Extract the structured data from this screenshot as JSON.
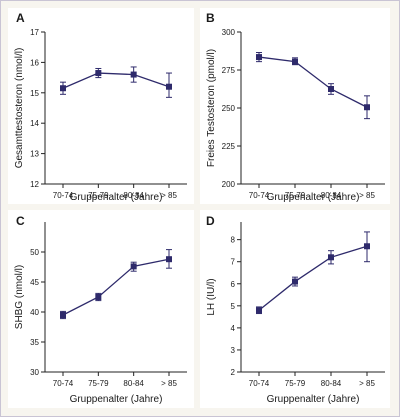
{
  "colors": {
    "series": "#2e2a6b",
    "axis": "#222222",
    "panel_bg": "#ffffff",
    "figure_bg": "#f7f5ef"
  },
  "chart_data": [
    {
      "type": "line",
      "panel": "A",
      "categories": [
        "70-74",
        "75-79",
        "80-84",
        "> 85"
      ],
      "values": [
        15.15,
        15.65,
        15.6,
        15.2
      ],
      "error_low": [
        14.95,
        15.5,
        15.35,
        14.85
      ],
      "error_high": [
        15.35,
        15.8,
        15.85,
        15.65
      ],
      "xlabel": "Gruppenalter (Jahre)",
      "ylabel": "Gesamttestosteron (nmol/l)",
      "ylim": [
        12,
        17
      ],
      "yticks": [
        "12",
        "13",
        "14",
        "15",
        "16",
        "17"
      ],
      "grid": false
    },
    {
      "type": "line",
      "panel": "B",
      "categories": [
        "70-74",
        "75-79",
        "80-84",
        "> 85"
      ],
      "values": [
        283.5,
        280.5,
        262.5,
        250.5
      ],
      "error_low": [
        280.5,
        278.5,
        259,
        243
      ],
      "error_high": [
        286.5,
        283,
        266,
        258
      ],
      "xlabel": "Gruppenalter (Jahre)",
      "ylabel": "Freies Testosteron (pmol/l)",
      "ylim": [
        200,
        300
      ],
      "yticks": [
        "200",
        "225",
        "250",
        "275",
        "300"
      ],
      "grid": false
    },
    {
      "type": "line",
      "panel": "C",
      "categories": [
        "70-74",
        "75-79",
        "80-84",
        "> 85"
      ],
      "values": [
        39.5,
        42.5,
        47.6,
        48.8
      ],
      "error_low": [
        38.9,
        41.9,
        46.8,
        47.3
      ],
      "error_high": [
        40.1,
        43.1,
        48.3,
        50.4
      ],
      "xlabel": "Gruppenalter (Jahre)",
      "ylabel": "SHBG (nmol/l)",
      "ylim": [
        30,
        55
      ],
      "yticks": [
        "30",
        "35",
        "40",
        "45",
        "50"
      ],
      "grid": false
    },
    {
      "type": "line",
      "panel": "D",
      "categories": [
        "70-74",
        "75-79",
        "80-84",
        "> 85"
      ],
      "values": [
        4.8,
        6.1,
        7.2,
        7.7
      ],
      "error_low": [
        4.65,
        5.9,
        6.9,
        7.0
      ],
      "error_high": [
        4.95,
        6.3,
        7.5,
        8.35
      ],
      "xlabel": "Gruppenalter (Jahre)",
      "ylabel": "LH (IU/l)",
      "ylim": [
        2,
        8.8
      ],
      "yticks": [
        "2",
        "3",
        "4",
        "5",
        "6",
        "7",
        "8"
      ],
      "grid": false
    }
  ]
}
